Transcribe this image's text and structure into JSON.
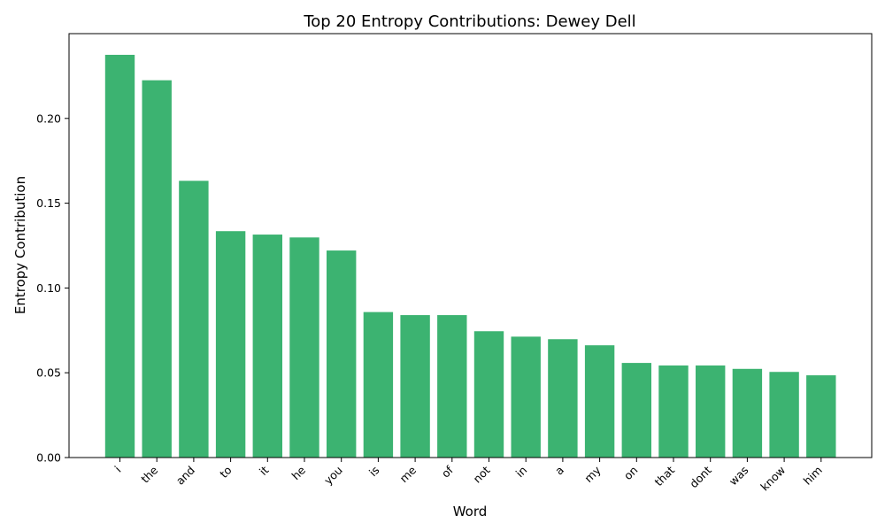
{
  "chart_data": {
    "type": "bar",
    "title": "Top 20 Entropy Contributions: Dewey Dell",
    "xlabel": "Word",
    "ylabel": "Entropy Contribution",
    "categories": [
      "i",
      "the",
      "and",
      "to",
      "it",
      "he",
      "you",
      "is",
      "me",
      "of",
      "not",
      "in",
      "a",
      "my",
      "on",
      "that",
      "dont",
      "was",
      "know",
      "him"
    ],
    "values": [
      0.2375,
      0.2225,
      0.1632,
      0.1335,
      0.1315,
      0.1298,
      0.1221,
      0.0858,
      0.084,
      0.084,
      0.0745,
      0.0713,
      0.0698,
      0.0662,
      0.0558,
      0.0543,
      0.0543,
      0.0523,
      0.0505,
      0.0485
    ],
    "ylim": [
      0,
      0.25
    ],
    "yticks": [
      0.0,
      0.05,
      0.1,
      0.15,
      0.2
    ],
    "ytick_labels": [
      "0.00",
      "0.05",
      "0.10",
      "0.15",
      "0.20"
    ],
    "bar_color": "#3cb371",
    "grid": false,
    "legend": "none"
  }
}
